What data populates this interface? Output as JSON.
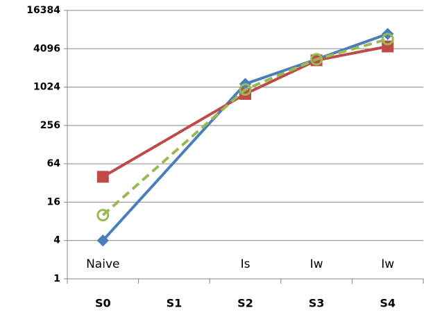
{
  "chart_data": {
    "type": "line",
    "categories": [
      "S0",
      "S1",
      "S2",
      "S3",
      "S4"
    ],
    "category_annotations": [
      "Naive",
      null,
      "Is",
      "Iw",
      "Iw"
    ],
    "log_scale": 2,
    "grid": true,
    "connect_gaps": true,
    "ylim": [
      1,
      16384
    ],
    "yticks": [
      1,
      4,
      16,
      64,
      256,
      1024,
      4096,
      16384
    ],
    "series": [
      {
        "color": "#4a7ebb",
        "marker": "diamond",
        "dashed": false,
        "values": [
          4,
          null,
          1150,
          2800,
          7000
        ]
      },
      {
        "color": "#be4b48",
        "marker": "square",
        "dashed": false,
        "values": [
          40,
          null,
          800,
          2700,
          4450
        ]
      },
      {
        "color": "#98b954",
        "marker": "circle",
        "dashed": true,
        "values": [
          10,
          null,
          940,
          2800,
          5800
        ]
      }
    ]
  }
}
